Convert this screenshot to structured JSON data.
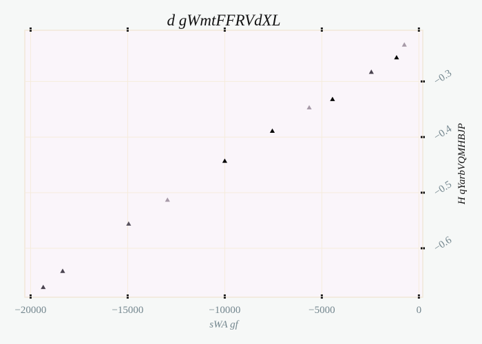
{
  "chart_data": {
    "type": "scatter",
    "title": "d gWmtFFRVdXL",
    "xlabel": "sWA gf",
    "ylabel": "H qYarbVQMHBJP",
    "xlim": [
      -20300,
      200
    ],
    "ylim": [
      -0.688,
      -0.208
    ],
    "x_ticks": [
      -20000,
      -15000,
      -10000,
      -5000,
      0
    ],
    "x_tick_labels": [
      "−20000",
      "−15000",
      "−10000",
      "−5000",
      "0"
    ],
    "y_ticks": [
      -0.3,
      -0.4,
      -0.5,
      -0.6
    ],
    "y_tick_labels": [
      "−0.3",
      "−0.4",
      "−0.5",
      "−0.6"
    ],
    "y_axis_side": "right",
    "grid": true,
    "legend": "none",
    "marker": "triangle-up",
    "points": [
      {
        "x": -19350,
        "y": -0.67,
        "color": "#4a4450"
      },
      {
        "x": -18350,
        "y": -0.641,
        "color": "#4a4450"
      },
      {
        "x": -14950,
        "y": -0.556,
        "color": "#5a5460"
      },
      {
        "x": -12950,
        "y": -0.513,
        "color": "#a79aa8"
      },
      {
        "x": -10000,
        "y": -0.443,
        "color": "#050505"
      },
      {
        "x": -7550,
        "y": -0.389,
        "color": "#050505"
      },
      {
        "x": -5650,
        "y": -0.347,
        "color": "#a79aa8"
      },
      {
        "x": -4450,
        "y": -0.332,
        "color": "#050505"
      },
      {
        "x": -2450,
        "y": -0.283,
        "color": "#4a4450"
      },
      {
        "x": -1150,
        "y": -0.257,
        "color": "#050505"
      },
      {
        "x": -750,
        "y": -0.234,
        "color": "#a79aa8"
      }
    ],
    "colors": {
      "plot_background": "#faf5fa",
      "plot_border": "#f1e7d8",
      "grid": "#f5ecdc",
      "tick_label": "#73868e",
      "xlabel": "#73868e",
      "ylabel": "#111111"
    }
  }
}
